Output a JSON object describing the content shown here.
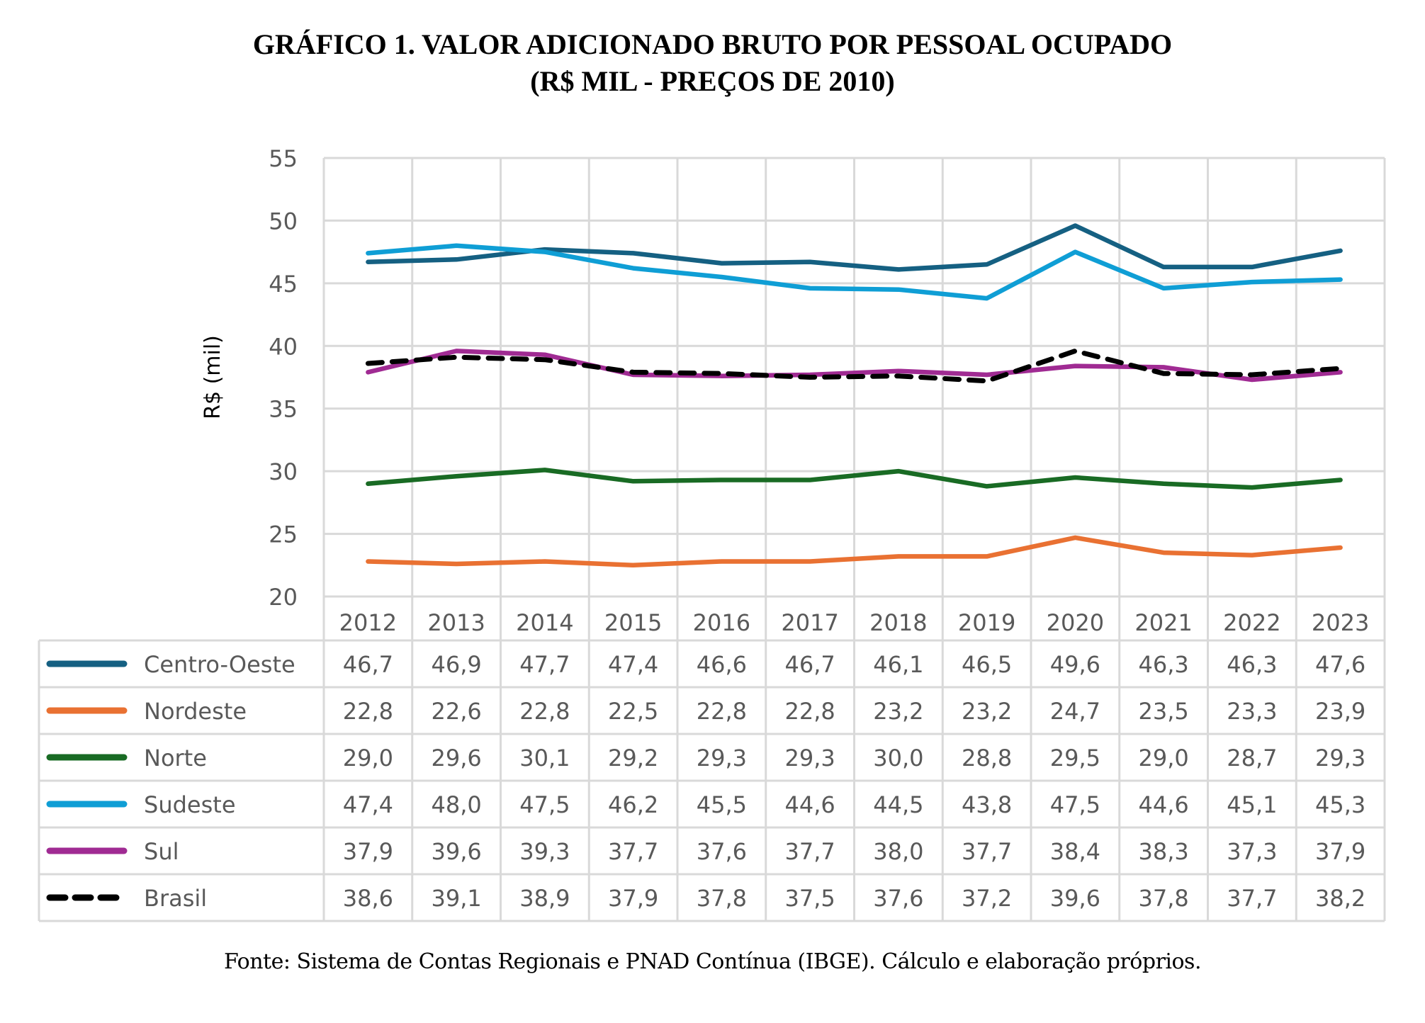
{
  "title_line1": "GRÁFICO 1. VALOR ADICIONADO BRUTO POR PESSOAL OCUPADO",
  "title_line2": "(R$ MIL - PREÇOS DE 2010)",
  "footnote": "Fonte: Sistema de Contas Regionais e PNAD Contínua (IBGE). Cálculo e elaboração próprios.",
  "chart_data": {
    "type": "line",
    "title": "GRÁFICO 1. VALOR ADICIONADO BRUTO POR PESSOAL OCUPADO (R$ MIL - PREÇOS DE 2010)",
    "xlabel": "",
    "ylabel": "R$ (mil)",
    "ylim": [
      20,
      55
    ],
    "yticks": [
      "20",
      "25",
      "30",
      "35",
      "40",
      "45",
      "50",
      "55"
    ],
    "ytick_values": [
      20,
      25,
      30,
      35,
      40,
      45,
      50,
      55
    ],
    "grid": true,
    "legend": "data-table-below",
    "categories": [
      "2012",
      "2013",
      "2014",
      "2015",
      "2016",
      "2017",
      "2018",
      "2019",
      "2020",
      "2021",
      "2022",
      "2023"
    ],
    "series": [
      {
        "name": "Centro-Oeste",
        "color": "#156082",
        "dashed": false,
        "values": [
          46.7,
          46.9,
          47.7,
          47.4,
          46.6,
          46.7,
          46.1,
          46.5,
          49.6,
          46.3,
          46.3,
          47.6
        ],
        "labels": [
          "46,7",
          "46,9",
          "47,7",
          "47,4",
          "46,6",
          "46,7",
          "46,1",
          "46,5",
          "49,6",
          "46,3",
          "46,3",
          "47,6"
        ]
      },
      {
        "name": "Nordeste",
        "color": "#E97132",
        "dashed": false,
        "values": [
          22.8,
          22.6,
          22.8,
          22.5,
          22.8,
          22.8,
          23.2,
          23.2,
          24.7,
          23.5,
          23.3,
          23.9
        ],
        "labels": [
          "22,8",
          "22,6",
          "22,8",
          "22,5",
          "22,8",
          "22,8",
          "23,2",
          "23,2",
          "24,7",
          "23,5",
          "23,3",
          "23,9"
        ]
      },
      {
        "name": "Norte",
        "color": "#196B24",
        "dashed": false,
        "values": [
          29.0,
          29.6,
          30.1,
          29.2,
          29.3,
          29.3,
          30.0,
          28.8,
          29.5,
          29.0,
          28.7,
          29.3
        ],
        "labels": [
          "29,0",
          "29,6",
          "30,1",
          "29,2",
          "29,3",
          "29,3",
          "30,0",
          "28,8",
          "29,5",
          "29,0",
          "28,7",
          "29,3"
        ]
      },
      {
        "name": "Sudeste",
        "color": "#0F9ED5",
        "dashed": false,
        "values": [
          47.4,
          48.0,
          47.5,
          46.2,
          45.5,
          44.6,
          44.5,
          43.8,
          47.5,
          44.6,
          45.1,
          45.3
        ],
        "labels": [
          "47,4",
          "48,0",
          "47,5",
          "46,2",
          "45,5",
          "44,6",
          "44,5",
          "43,8",
          "47,5",
          "44,6",
          "45,1",
          "45,3"
        ]
      },
      {
        "name": "Sul",
        "color": "#A02B93",
        "dashed": false,
        "values": [
          37.9,
          39.6,
          39.3,
          37.7,
          37.6,
          37.7,
          38.0,
          37.7,
          38.4,
          38.3,
          37.3,
          37.9
        ],
        "labels": [
          "37,9",
          "39,6",
          "39,3",
          "37,7",
          "37,6",
          "37,7",
          "38,0",
          "37,7",
          "38,4",
          "38,3",
          "37,3",
          "37,9"
        ]
      },
      {
        "name": "Brasil",
        "color": "#000000",
        "dashed": true,
        "values": [
          38.6,
          39.1,
          38.9,
          37.9,
          37.8,
          37.5,
          37.6,
          37.2,
          39.6,
          37.8,
          37.7,
          38.2
        ],
        "labels": [
          "38,6",
          "39,1",
          "38,9",
          "37,9",
          "37,8",
          "37,5",
          "37,6",
          "37,2",
          "39,6",
          "37,8",
          "37,7",
          "38,2"
        ]
      }
    ]
  }
}
